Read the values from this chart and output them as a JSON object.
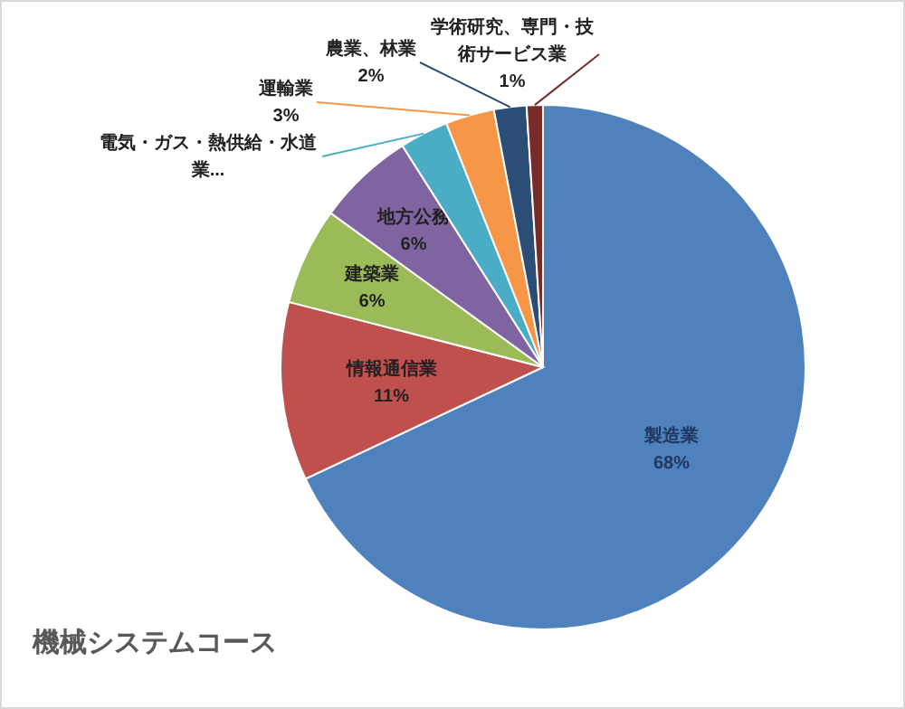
{
  "chart_data": {
    "type": "pie",
    "title": "機械システムコース",
    "categories": [
      "製造業",
      "情報通信業",
      "建築業",
      "地方公務",
      "電気・ガス・熱供給・水道業...",
      "運輸業",
      "農業、林業",
      "学術研究、専門・技術サービス業"
    ],
    "values": [
      68,
      11,
      6,
      6,
      3,
      3,
      2,
      1
    ],
    "value_labels": [
      "68%",
      "11%",
      "6%",
      "6%",
      null,
      "3%",
      "2%",
      "1%"
    ],
    "colors": [
      "#4f81bd",
      "#c0504d",
      "#9bbb59",
      "#8064a2",
      "#4bacc6",
      "#f79646",
      "#2c4d75",
      "#772c2a"
    ]
  }
}
